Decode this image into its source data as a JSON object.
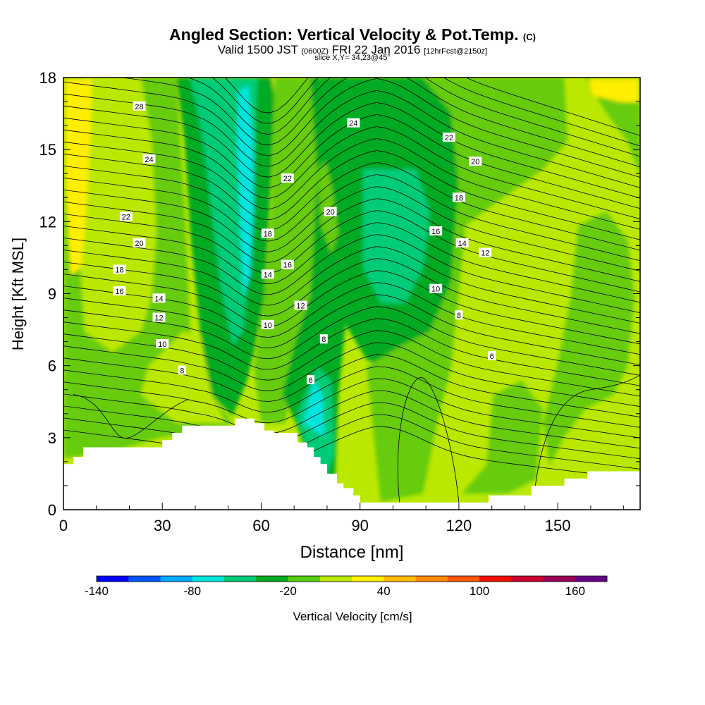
{
  "header": {
    "title": "Angled Section: Vertical Velocity & Pot.Temp.",
    "title_suffix": "(C)",
    "valid_prefix": "Valid 1500 JST",
    "valid_zulu": "(0600Z)",
    "valid_date": "FRI 22 Jan 2016",
    "forecast": "[12hrFcst@2150z]",
    "slice": "slice X,Y= 34,23@45°"
  },
  "chart_data": {
    "type": "contour",
    "xlabel": "Distance [nm]",
    "ylabel": "Height [Kft MSL]",
    "xlim": [
      0,
      175
    ],
    "ylim": [
      0,
      18
    ],
    "x_ticks": [
      0,
      30,
      60,
      90,
      120,
      150
    ],
    "y_ticks": [
      0,
      3,
      6,
      9,
      12,
      15,
      18
    ],
    "x_tick_labels": [
      "0",
      "30",
      "60",
      "90",
      "120",
      "150"
    ],
    "y_tick_labels": [
      "0",
      "3",
      "6",
      "9",
      "12",
      "15",
      "18"
    ],
    "fill_variable": "Vertical Velocity [cm/s]",
    "colorbar": {
      "label": "Vertical Velocity [cm/s]",
      "range": [
        -140,
        180
      ],
      "tick_values": [
        -140,
        -80,
        -20,
        40,
        100,
        160
      ],
      "tick_labels": [
        "-140",
        "-80",
        "-20",
        "40",
        "100",
        "160"
      ],
      "colors": [
        "#0000ff",
        "#0055ff",
        "#00aaff",
        "#00e5dd",
        "#00cc77",
        "#00aa22",
        "#55cc11",
        "#bbe800",
        "#ffee00",
        "#ffbb00",
        "#ff8800",
        "#ff5500",
        "#ee1100",
        "#cc0033",
        "#990055",
        "#660088"
      ]
    },
    "isentrope_label": "Pot.Temp. (C)",
    "isentrope_labels": [
      {
        "text": "28",
        "x": 23,
        "y": 16.8
      },
      {
        "text": "24",
        "x": 26,
        "y": 14.6
      },
      {
        "text": "22",
        "x": 19,
        "y": 12.2
      },
      {
        "text": "20",
        "x": 23,
        "y": 11.1
      },
      {
        "text": "18",
        "x": 17,
        "y": 10.0
      },
      {
        "text": "16",
        "x": 17,
        "y": 9.1
      },
      {
        "text": "14",
        "x": 29,
        "y": 8.8
      },
      {
        "text": "12",
        "x": 29,
        "y": 8.0
      },
      {
        "text": "10",
        "x": 30,
        "y": 6.9
      },
      {
        "text": "8",
        "x": 36,
        "y": 5.8
      },
      {
        "text": "18",
        "x": 62,
        "y": 11.5
      },
      {
        "text": "14",
        "x": 62,
        "y": 9.8
      },
      {
        "text": "10",
        "x": 62,
        "y": 7.7
      },
      {
        "text": "16",
        "x": 68,
        "y": 10.2
      },
      {
        "text": "12",
        "x": 72,
        "y": 8.5
      },
      {
        "text": "22",
        "x": 68,
        "y": 13.8
      },
      {
        "text": "20",
        "x": 81,
        "y": 12.4
      },
      {
        "text": "8",
        "x": 79,
        "y": 7.1
      },
      {
        "text": "6",
        "x": 75,
        "y": 5.4
      },
      {
        "text": "24",
        "x": 88,
        "y": 16.1
      },
      {
        "text": "22",
        "x": 117,
        "y": 15.5
      },
      {
        "text": "20",
        "x": 125,
        "y": 14.5
      },
      {
        "text": "18",
        "x": 120,
        "y": 13.0
      },
      {
        "text": "16",
        "x": 113,
        "y": 11.6
      },
      {
        "text": "14",
        "x": 121,
        "y": 11.1
      },
      {
        "text": "12",
        "x": 128,
        "y": 10.7
      },
      {
        "text": "10",
        "x": 113,
        "y": 9.2
      },
      {
        "text": "8",
        "x": 120,
        "y": 8.1
      },
      {
        "text": "6",
        "x": 130,
        "y": 6.4
      }
    ],
    "terrain_kft": [
      [
        0,
        1.9
      ],
      [
        3,
        1.9
      ],
      [
        3,
        2.2
      ],
      [
        6,
        2.2
      ],
      [
        6,
        2.6
      ],
      [
        30,
        2.6
      ],
      [
        30,
        2.9
      ],
      [
        33,
        2.9
      ],
      [
        33,
        3.2
      ],
      [
        36,
        3.2
      ],
      [
        36,
        3.5
      ],
      [
        52,
        3.5
      ],
      [
        52,
        3.8
      ],
      [
        58,
        3.8
      ],
      [
        58,
        3.6
      ],
      [
        61,
        3.6
      ],
      [
        61,
        3.3
      ],
      [
        64,
        3.3
      ],
      [
        64,
        3.2
      ],
      [
        71,
        3.2
      ],
      [
        71,
        2.8
      ],
      [
        74,
        2.8
      ],
      [
        74,
        2.6
      ],
      [
        76,
        2.6
      ],
      [
        76,
        2.2
      ],
      [
        78,
        2.2
      ],
      [
        78,
        1.9
      ],
      [
        80,
        1.9
      ],
      [
        80,
        1.5
      ],
      [
        83,
        1.5
      ],
      [
        83,
        1.1
      ],
      [
        85,
        1.1
      ],
      [
        85,
        0.9
      ],
      [
        88,
        0.9
      ],
      [
        88,
        0.6
      ],
      [
        90,
        0.6
      ],
      [
        90,
        0.3
      ],
      [
        129,
        0.3
      ],
      [
        129,
        0.6
      ],
      [
        142,
        0.6
      ],
      [
        142,
        1.0
      ],
      [
        152,
        1.0
      ],
      [
        152,
        1.3
      ],
      [
        159,
        1.3
      ],
      [
        159,
        1.6
      ],
      [
        175,
        1.6
      ]
    ]
  }
}
